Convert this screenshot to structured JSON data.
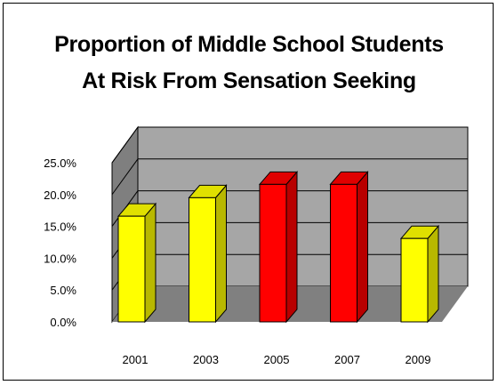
{
  "chart_data": {
    "type": "bar",
    "title_lines": [
      "Proportion of Middle School Students",
      "At Risk From Sensation Seeking"
    ],
    "categories": [
      "2001",
      "2003",
      "2005",
      "2007",
      "2009"
    ],
    "values": [
      0.166,
      0.195,
      0.216,
      0.216,
      0.131
    ],
    "value_format": "percent_1dp",
    "ylim": [
      0,
      0.25
    ],
    "yticks": [
      0,
      0.05,
      0.1,
      0.15,
      0.2,
      0.25
    ],
    "ytick_labels": [
      "0.0%",
      "5.0%",
      "10.0%",
      "15.0%",
      "20.0%",
      "25.0%"
    ],
    "grid": true,
    "three_d": true,
    "legend": "none",
    "colors": {
      "2001": "#ffff00",
      "2003": "#ffff00",
      "2005": "#ff0000",
      "2007": "#ff0000",
      "2009": "#ffff00"
    },
    "wall_color": "#a6a6a6",
    "side_wall_color": "#7f7f7f",
    "floor_color": "#808080"
  }
}
